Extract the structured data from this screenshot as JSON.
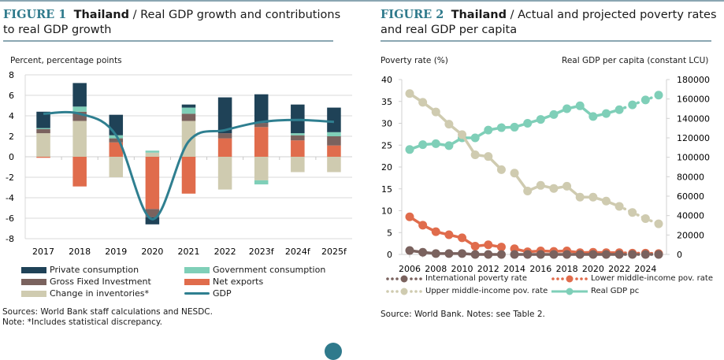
{
  "figure1": {
    "fig_label": "FIGURE 1",
    "country": "Thailand",
    "title_rest": " / Real GDP growth and contributions to real GDP growth",
    "y_axis_title": "Percent, percentage points",
    "sources": "Sources: World Bank staff calculations and NESDC.",
    "note": "Note: *Includes statistical discrepancy."
  },
  "figure2": {
    "fig_label": "FIGURE 2",
    "country": "Thailand",
    "title_rest": " / Actual and projected poverty rates and real GDP per capita",
    "y_left_title": "Poverty rate (%)",
    "y_right_title": "Real GDP per capita (constant LCU)",
    "source": "Source: World Bank. Notes: see Table 2."
  },
  "colors": {
    "private": "#1f4257",
    "gov": "#7fcfb8",
    "gfi": "#7a625e",
    "netex": "#e06c4c",
    "inv": "#cfcbb0",
    "gdp": "#2f7f90",
    "intl": "#7a625e",
    "lmic": "#e06c4c",
    "umic": "#cfcbb0",
    "gdppc": "#7fcfb8",
    "accent": "#2f7a8c"
  },
  "chart_data": [
    {
      "type": "bar",
      "stacked": true,
      "title": "Thailand / Real GDP growth and contributions to real GDP growth",
      "ylabel": "Percent, percentage points",
      "xlabel": "",
      "ylim": [
        -8,
        8
      ],
      "yticks": [
        8,
        6,
        4,
        2,
        0,
        -2,
        -4,
        -6,
        -8
      ],
      "grid": true,
      "legend_position": "bottom",
      "categories": [
        "2017",
        "2018",
        "2019",
        "2020",
        "2021",
        "2022",
        "2023f",
        "2024f",
        "2025f"
      ],
      "series": [
        {
          "name": "Private consumption",
          "key": "private",
          "values": [
            1.6,
            2.3,
            2.0,
            -0.7,
            0.3,
            3.5,
            2.8,
            2.8,
            2.4
          ]
        },
        {
          "name": "Government consumption",
          "key": "gov",
          "values": [
            0.1,
            0.5,
            0.3,
            0.2,
            0.6,
            0.0,
            -0.4,
            0.2,
            0.4
          ]
        },
        {
          "name": "Gross Fixed Investment",
          "key": "gfi",
          "values": [
            0.4,
            0.9,
            0.4,
            -0.8,
            0.7,
            0.5,
            0.4,
            0.5,
            0.9
          ]
        },
        {
          "name": "Net exports",
          "key": "netex",
          "values": [
            -0.1,
            -2.9,
            1.4,
            -5.1,
            -3.6,
            1.8,
            2.9,
            1.6,
            1.1
          ]
        },
        {
          "name": "Change in inventories*",
          "key": "inv",
          "values": [
            2.3,
            3.5,
            -2.0,
            0.4,
            3.5,
            -3.2,
            -2.3,
            -1.5,
            -1.5
          ]
        }
      ],
      "line": {
        "name": "GDP",
        "key": "gdp",
        "values": [
          4.2,
          4.2,
          2.1,
          -6.1,
          1.5,
          2.6,
          3.4,
          3.6,
          3.4
        ]
      },
      "legend": [
        {
          "label": "Private consumption",
          "key": "private",
          "kind": "box"
        },
        {
          "label": "Government consumption",
          "key": "gov",
          "kind": "box"
        },
        {
          "label": "Gross Fixed Investment",
          "key": "gfi",
          "kind": "box"
        },
        {
          "label": "Net exports",
          "key": "netex",
          "kind": "box"
        },
        {
          "label": "Change in inventories*",
          "key": "inv",
          "kind": "box"
        },
        {
          "label": "GDP",
          "key": "gdp",
          "kind": "line"
        }
      ]
    },
    {
      "type": "line",
      "title": "Thailand / Actual and projected poverty rates and real GDP per capita",
      "ylabel_left": "Poverty rate (%)",
      "ylabel_right": "Real GDP per capita (constant LCU)",
      "ylim_left": [
        0,
        40
      ],
      "ylim_right": [
        0,
        180000
      ],
      "yticks_left": [
        0,
        5,
        10,
        15,
        20,
        25,
        30,
        35,
        40
      ],
      "yticks_right": [
        0,
        20000,
        40000,
        60000,
        80000,
        100000,
        120000,
        140000,
        160000,
        180000
      ],
      "x": [
        2006,
        2007,
        2008,
        2009,
        2010,
        2011,
        2012,
        2013,
        2014,
        2015,
        2016,
        2017,
        2018,
        2019,
        2020,
        2021,
        2022,
        2023,
        2024,
        2025
      ],
      "xticks": [
        "2006",
        "2008",
        "2010",
        "2012",
        "2014",
        "2016",
        "2018",
        "2020",
        "2022",
        "2024"
      ],
      "projection_start": 2022,
      "legend_position": "bottom",
      "series": [
        {
          "name": "International poverty rate",
          "key": "intl",
          "axis": "left",
          "values": [
            0.9,
            0.5,
            0.2,
            0.2,
            0.2,
            0.0,
            0.0,
            0.0,
            0.0,
            0.0,
            0.0,
            0.0,
            0.0,
            0.0,
            0.0,
            0.0,
            0.0,
            0.0,
            0.0,
            0.0
          ],
          "gaps_after": [
            2013
          ]
        },
        {
          "name": "Lower middle-income pov. rate",
          "key": "lmic",
          "axis": "left",
          "values": [
            8.6,
            6.7,
            5.2,
            4.5,
            3.8,
            1.9,
            2.2,
            1.7,
            1.3,
            0.6,
            0.8,
            0.7,
            0.8,
            0.4,
            0.5,
            0.4,
            0.4,
            0.3,
            0.3,
            0.2
          ],
          "gaps_after": [
            2013
          ]
        },
        {
          "name": "Upper middle-income pov. rate",
          "key": "umic",
          "axis": "left",
          "values": [
            36.8,
            34.8,
            32.6,
            29.8,
            27.4,
            22.8,
            22.4,
            19.4,
            18.6,
            14.5,
            15.8,
            15.1,
            15.6,
            13.1,
            13.1,
            12.2,
            11.0,
            9.6,
            8.2,
            7.0
          ],
          "gaps_after": [
            2013
          ]
        },
        {
          "name": "Real GDP pc",
          "key": "gdppc",
          "axis": "right",
          "values": [
            108000,
            113000,
            114000,
            112000,
            120000,
            120000,
            128000,
            130500,
            131000,
            135000,
            139000,
            144000,
            150000,
            153000,
            142000,
            145000,
            149000,
            154000,
            159000,
            164000
          ],
          "gaps_after": []
        }
      ],
      "legend": [
        {
          "label": "International poverty rate",
          "key": "intl",
          "kind": "dotted"
        },
        {
          "label": "Lower middle-income pov. rate",
          "key": "lmic",
          "kind": "dotted"
        },
        {
          "label": "Upper middle-income pov. rate",
          "key": "umic",
          "kind": "dotted"
        },
        {
          "label": "Real GDP pc",
          "key": "gdppc",
          "kind": "solid"
        }
      ]
    }
  ]
}
